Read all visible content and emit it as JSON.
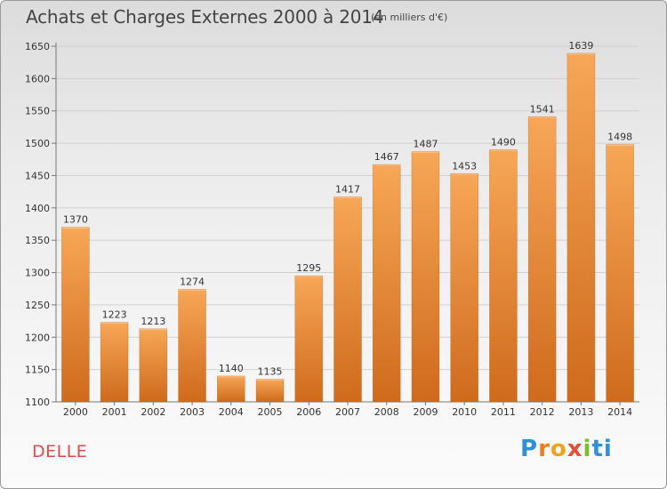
{
  "header": {
    "title": "Achats et Charges Externes 2000 à 2014",
    "unit": "(en milliers d'€)"
  },
  "footer": {
    "town": "DELLE",
    "logo_letters": [
      "P",
      "r",
      "o",
      "x",
      "i",
      "ti"
    ]
  },
  "colors": {
    "bar_light": "#f7a757",
    "bar_dark": "#cf6a1c",
    "town": "#e24a4a"
  },
  "chart_data": {
    "type": "bar",
    "title": "Achats et Charges Externes 2000 à 2014",
    "subtitle": "(en milliers d'€)",
    "categories": [
      "2000",
      "2001",
      "2002",
      "2003",
      "2004",
      "2005",
      "2006",
      "2007",
      "2008",
      "2009",
      "2010",
      "2011",
      "2012",
      "2013",
      "2014"
    ],
    "values": [
      1370,
      1223,
      1213,
      1274,
      1140,
      1135,
      1295,
      1417,
      1467,
      1487,
      1453,
      1490,
      1541,
      1639,
      1498
    ],
    "ylim": [
      1100,
      1650
    ],
    "yticks": [
      1100,
      1150,
      1200,
      1250,
      1300,
      1350,
      1400,
      1450,
      1500,
      1550,
      1600,
      1650
    ],
    "grid": true,
    "xlabel": "",
    "ylabel": ""
  }
}
